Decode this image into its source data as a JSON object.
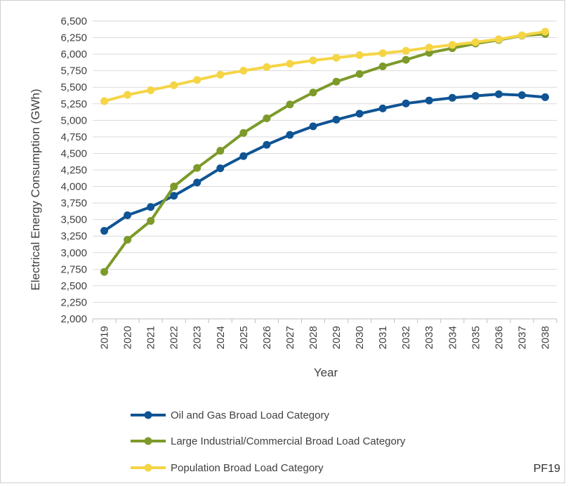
{
  "chart_data": {
    "type": "line",
    "title": "",
    "xlabel": "Year",
    "ylabel": "Electrical Energy Consumption (GWh)",
    "ylim": [
      2000,
      6500
    ],
    "ytick_step": 250,
    "grid": true,
    "legend_position": "bottom",
    "categories": [
      "2019",
      "2020",
      "2021",
      "2022",
      "2023",
      "2024",
      "2025",
      "2026",
      "2027",
      "2028",
      "2029",
      "2030",
      "2031",
      "2032",
      "2033",
      "2034",
      "2035",
      "2036",
      "2037",
      "2038"
    ],
    "series": [
      {
        "name": "Oil and Gas Broad Load Category",
        "color": "#0f5494",
        "values": [
          3330,
          3565,
          3690,
          3860,
          4060,
          4275,
          4460,
          4630,
          4780,
          4910,
          5010,
          5100,
          5180,
          5255,
          5300,
          5340,
          5370,
          5395,
          5380,
          5350
        ]
      },
      {
        "name": "Large Industrial/Commercial Broad Load Category",
        "color": "#7d9a2a",
        "values": [
          2710,
          3195,
          3480,
          4000,
          4280,
          4540,
          4810,
          5030,
          5240,
          5420,
          5585,
          5700,
          5815,
          5915,
          6020,
          6090,
          6160,
          6215,
          6280,
          6305
        ]
      },
      {
        "name": "Population Broad Load Category",
        "color": "#f5d545",
        "values": [
          5290,
          5385,
          5455,
          5530,
          5610,
          5690,
          5750,
          5805,
          5855,
          5905,
          5945,
          5985,
          6015,
          6050,
          6100,
          6140,
          6180,
          6225,
          6285,
          6340
        ]
      }
    ]
  },
  "annotation": {
    "text": "PF19"
  }
}
